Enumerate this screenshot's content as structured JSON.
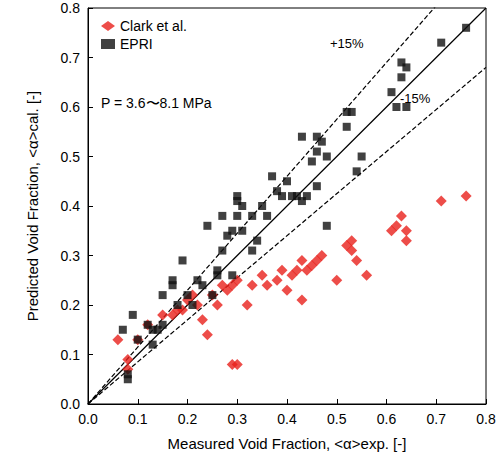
{
  "chart_data": {
    "type": "scatter",
    "x_label": "Measured Void Fraction, <α>exp. [-]",
    "y_label": "Predicted Void Fraction, <α>cal. [-]",
    "annotations": [
      "P = 3.6〜8.1 MPa"
    ],
    "xlim": [
      0,
      0.8
    ],
    "ylim": [
      0,
      0.8
    ],
    "xticks": [
      {
        "value": 0,
        "label": "0.0"
      },
      0.1,
      0.2,
      0.3,
      0.4,
      0.5,
      0.6,
      0.7,
      0.8
    ],
    "yticks": [
      {
        "value": 0,
        "label": "0.0"
      },
      0.1,
      0.2,
      0.3,
      0.4,
      0.5,
      0.6,
      0.7,
      0.8
    ],
    "grid": false,
    "legend": "upper left",
    "reference_lines": [
      {
        "slope": 1,
        "line_style": "solid"
      },
      {
        "slope": 1.15,
        "line_style": "dashed",
        "label": "+15%"
      },
      {
        "slope": 0.85,
        "line_style": "dashed",
        "label": "-15%"
      }
    ],
    "series": [
      {
        "name": "Clark et al.",
        "color": "#e8201c",
        "marker": "diamond",
        "x": [
          0.06,
          0.08,
          0.08,
          0.1,
          0.12,
          0.15,
          0.17,
          0.18,
          0.19,
          0.2,
          0.21,
          0.22,
          0.23,
          0.24,
          0.25,
          0.26,
          0.27,
          0.28,
          0.29,
          0.29,
          0.3,
          0.3,
          0.32,
          0.33,
          0.35,
          0.36,
          0.38,
          0.39,
          0.4,
          0.41,
          0.42,
          0.43,
          0.43,
          0.44,
          0.45,
          0.46,
          0.47,
          0.5,
          0.52,
          0.53,
          0.53,
          0.54,
          0.56,
          0.61,
          0.62,
          0.63,
          0.64,
          0.64,
          0.71,
          0.76
        ],
        "values": [
          0.13,
          0.09,
          0.07,
          0.13,
          0.16,
          0.18,
          0.18,
          0.19,
          0.19,
          0.21,
          0.22,
          0.2,
          0.17,
          0.14,
          0.22,
          0.2,
          0.24,
          0.23,
          0.24,
          0.08,
          0.08,
          0.25,
          0.2,
          0.24,
          0.26,
          0.24,
          0.25,
          0.27,
          0.23,
          0.26,
          0.27,
          0.29,
          0.21,
          0.27,
          0.28,
          0.29,
          0.3,
          0.25,
          0.32,
          0.33,
          0.31,
          0.29,
          0.26,
          0.35,
          0.36,
          0.38,
          0.35,
          0.33,
          0.41,
          0.42
        ]
      },
      {
        "name": "EPRI",
        "color": "#111111",
        "marker": "square",
        "x": [
          0.07,
          0.08,
          0.08,
          0.09,
          0.1,
          0.12,
          0.13,
          0.13,
          0.14,
          0.15,
          0.15,
          0.17,
          0.17,
          0.18,
          0.19,
          0.2,
          0.21,
          0.22,
          0.23,
          0.24,
          0.25,
          0.26,
          0.26,
          0.27,
          0.27,
          0.28,
          0.29,
          0.29,
          0.3,
          0.3,
          0.3,
          0.31,
          0.31,
          0.33,
          0.33,
          0.34,
          0.35,
          0.36,
          0.37,
          0.38,
          0.39,
          0.4,
          0.41,
          0.42,
          0.43,
          0.43,
          0.44,
          0.45,
          0.46,
          0.46,
          0.47,
          0.48,
          0.46,
          0.48,
          0.52,
          0.52,
          0.53,
          0.54,
          0.55,
          0.61,
          0.62,
          0.63,
          0.63,
          0.64,
          0.64,
          0.71,
          0.76
        ],
        "values": [
          0.15,
          0.06,
          0.05,
          0.18,
          0.13,
          0.16,
          0.15,
          0.12,
          0.15,
          0.16,
          0.22,
          0.25,
          0.24,
          0.2,
          0.29,
          0.22,
          0.2,
          0.25,
          0.24,
          0.36,
          0.22,
          0.26,
          0.27,
          0.38,
          0.31,
          0.34,
          0.26,
          0.35,
          0.42,
          0.41,
          0.38,
          0.35,
          0.4,
          0.31,
          0.38,
          0.33,
          0.4,
          0.38,
          0.46,
          0.43,
          0.42,
          0.45,
          0.42,
          0.42,
          0.41,
          0.54,
          0.42,
          0.49,
          0.54,
          0.51,
          0.53,
          0.5,
          0.44,
          0.36,
          0.59,
          0.56,
          0.59,
          0.47,
          0.5,
          0.63,
          0.6,
          0.69,
          0.66,
          0.68,
          0.6,
          0.73,
          0.76
        ]
      }
    ]
  }
}
